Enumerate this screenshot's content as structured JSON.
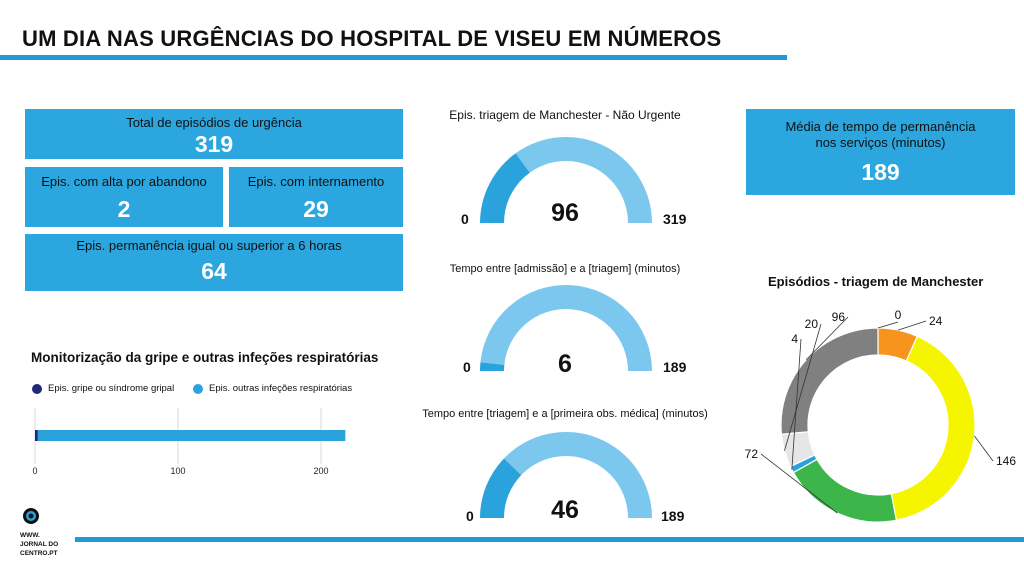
{
  "header": {
    "title": "UM DIA NAS URGÊNCIAS DO HOSPITAL DE VISEU EM NÚMEROS"
  },
  "colors": {
    "accent": "#1f9bd7",
    "card": "#2ba6df",
    "gauge_fill": "#2aa3dd",
    "gauge_track": "#7cc7ee"
  },
  "cards": {
    "total": {
      "label": "Total de episódios de urgência",
      "value": "319"
    },
    "abandono": {
      "label": "Epis. com alta por abandono",
      "value": "2"
    },
    "internamento": {
      "label": "Epis. com internamento",
      "value": "29"
    },
    "seis_horas": {
      "label": "Epis. permanência igual ou superior a 6 horas",
      "value": "64"
    },
    "media": {
      "label_line1": "Média de tempo de permanência",
      "label_line2": "nos serviços (minutos)",
      "value": "189"
    }
  },
  "gauges": [
    {
      "title": "Epis. triagem de Manchester - Não Urgente",
      "min": "0",
      "max": "319",
      "value": "96",
      "value_num": 96,
      "max_num": 319
    },
    {
      "title": "Tempo entre [admissão] e a [triagem] (minutos)",
      "min": "0",
      "max": "189",
      "value": "6",
      "value_num": 6,
      "max_num": 189
    },
    {
      "title": "Tempo entre [triagem] e a [primeira obs. médica] (minutos)",
      "min": "0",
      "max": "189",
      "value": "46",
      "value_num": 46,
      "max_num": 189
    }
  ],
  "flu": {
    "title": "Monitorização da gripe e outras infeções respiratórias",
    "legend": [
      {
        "name": "Epis. gripe ou síndrome gripal",
        "color": "#1e2a78"
      },
      {
        "name": "Epis. outras infeções respiratórias",
        "color": "#2aa3dd"
      }
    ],
    "ticks": [
      "0",
      "100",
      "200"
    ]
  },
  "donut": {
    "title": "Episódios - triagem de Manchester"
  },
  "logo": {
    "line1": "WWW.",
    "line2": "JORNAL DO",
    "line3": "CENTRO.PT"
  },
  "chart_data": [
    {
      "type": "bar",
      "orientation": "horizontal",
      "stacked": true,
      "title": "Monitorização da gripe e outras infeções respiratórias",
      "xlim": [
        0,
        220
      ],
      "series": [
        {
          "name": "Epis. gripe ou síndrome gripal",
          "values": [
            2
          ],
          "color": "#1e2a78"
        },
        {
          "name": "Epis. outras infeções respiratórias",
          "values": [
            215
          ],
          "color": "#2aa3dd"
        }
      ],
      "grid": true,
      "legend": "top-left"
    },
    {
      "type": "pie",
      "title": "Episódios - triagem de Manchester",
      "donut": true,
      "values": [
        0,
        24,
        146,
        72,
        4,
        20,
        96
      ],
      "labels": [
        "0",
        "24",
        "146",
        "72",
        "4",
        "20",
        "96"
      ],
      "colors": [
        "#e53935",
        "#f7941d",
        "#f5f500",
        "#3cb54a",
        "#2aa3dd",
        "#e6e6e6",
        "#808080"
      ]
    }
  ]
}
